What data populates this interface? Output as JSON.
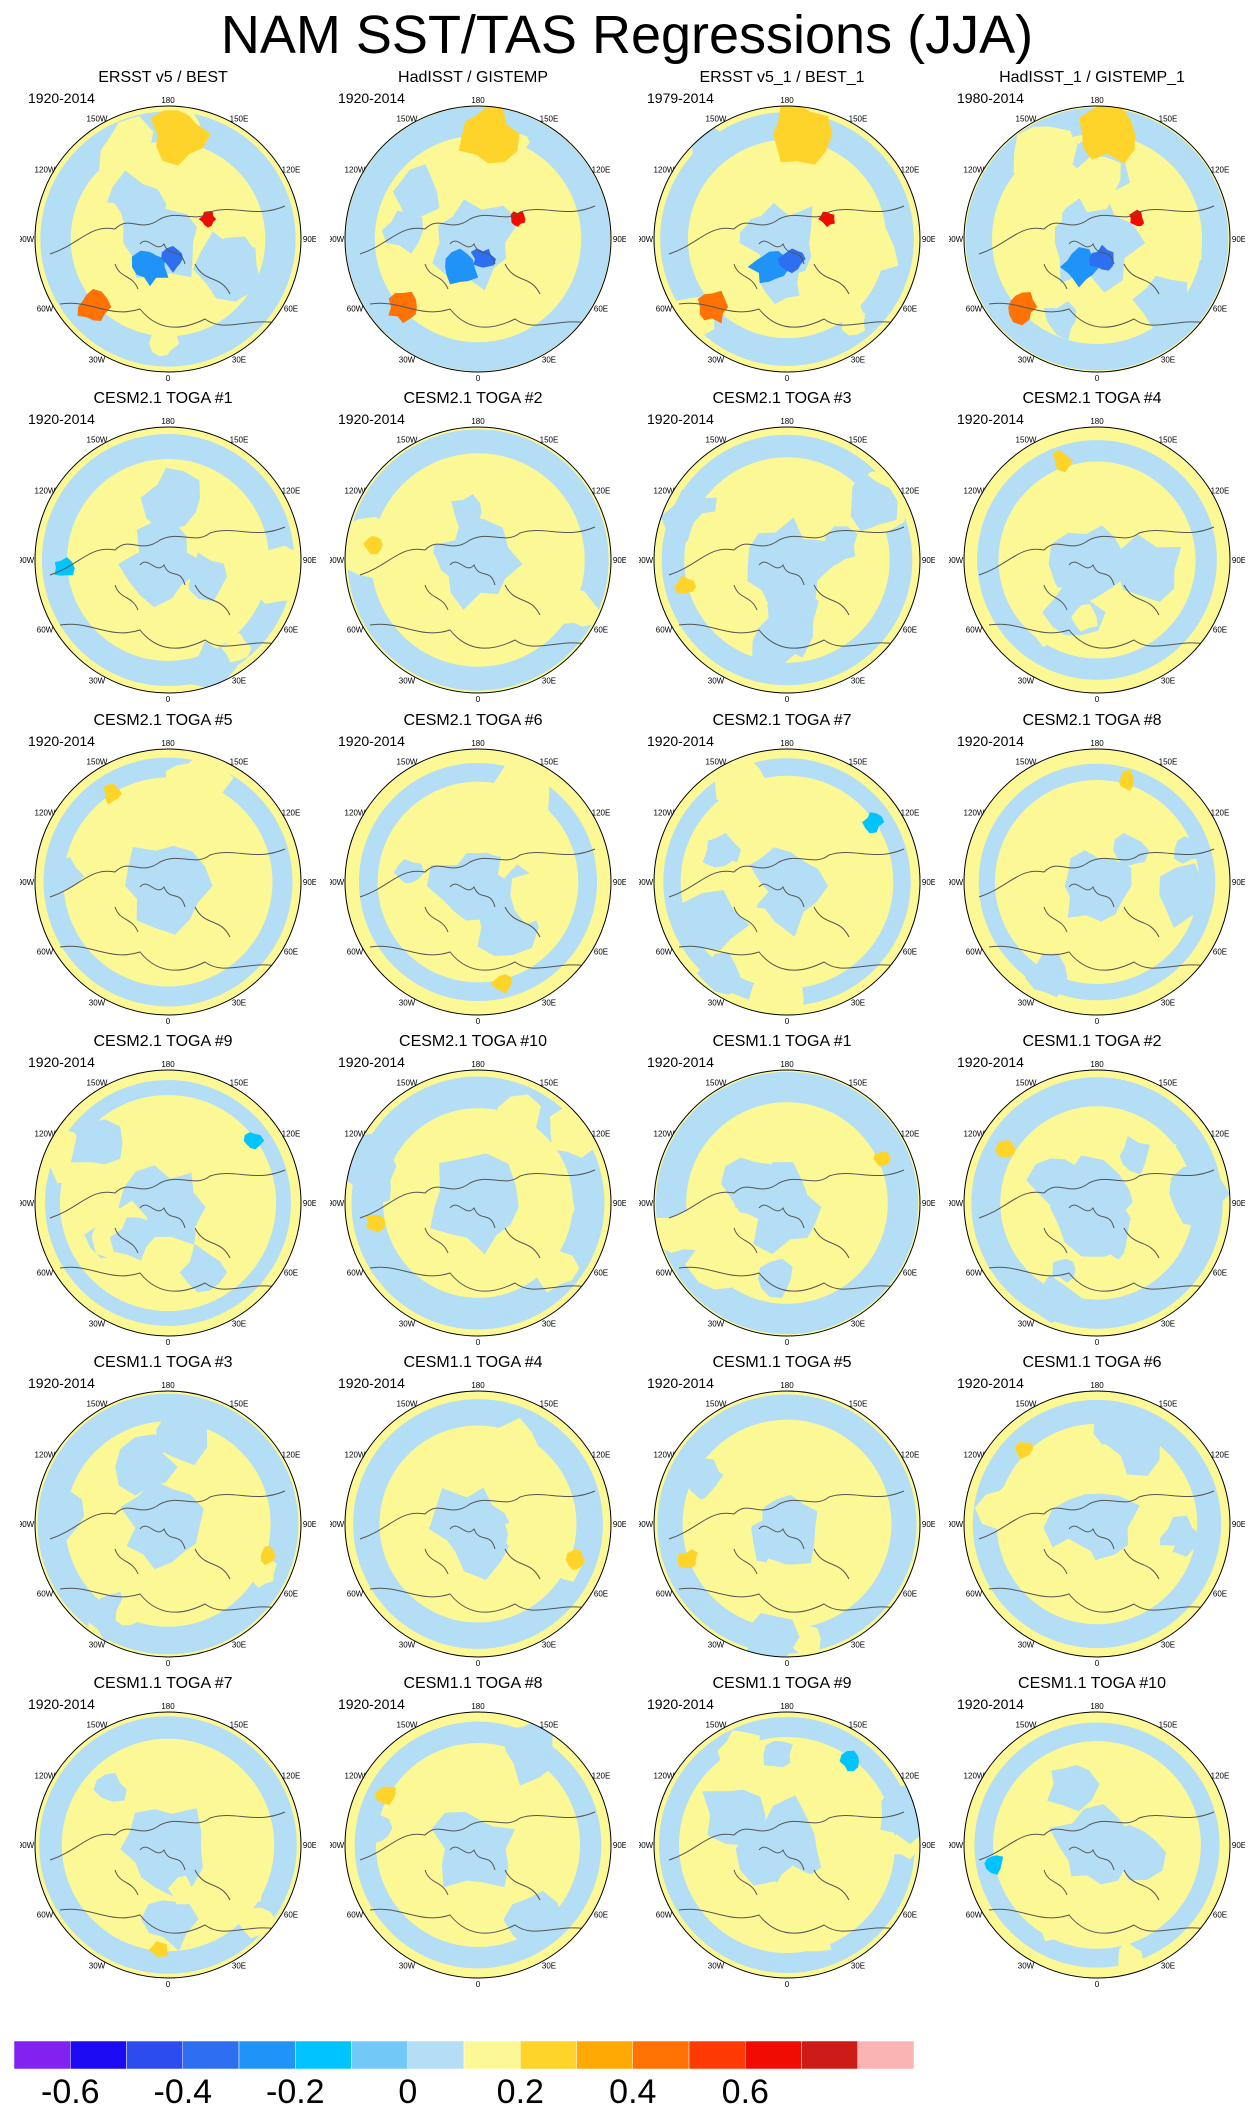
{
  "title": "NAM SST/TAS Regressions (JJA)",
  "panels": [
    {
      "title": "ERSST v5 / BEST",
      "period": "1920-2014"
    },
    {
      "title": "HadISST / GISTEMP",
      "period": "1920-2014"
    },
    {
      "title": "ERSST v5_1 / BEST_1",
      "period": "1979-2014"
    },
    {
      "title": "HadISST_1 / GISTEMP_1",
      "period": "1980-2014"
    },
    {
      "title": "CESM2.1 TOGA #1",
      "period": "1920-2014"
    },
    {
      "title": "CESM2.1 TOGA #2",
      "period": "1920-2014"
    },
    {
      "title": "CESM2.1 TOGA #3",
      "period": "1920-2014"
    },
    {
      "title": "CESM2.1 TOGA #4",
      "period": "1920-2014"
    },
    {
      "title": "CESM2.1 TOGA #5",
      "period": "1920-2014"
    },
    {
      "title": "CESM2.1 TOGA #6",
      "period": "1920-2014"
    },
    {
      "title": "CESM2.1 TOGA #7",
      "period": "1920-2014"
    },
    {
      "title": "CESM2.1 TOGA #8",
      "period": "1920-2014"
    },
    {
      "title": "CESM2.1 TOGA #9",
      "period": "1920-2014"
    },
    {
      "title": "CESM2.1 TOGA #10",
      "period": "1920-2014"
    },
    {
      "title": "CESM1.1 TOGA #1",
      "period": "1920-2014"
    },
    {
      "title": "CESM1.1 TOGA #2",
      "period": "1920-2014"
    },
    {
      "title": "CESM1.1 TOGA #3",
      "period": "1920-2014"
    },
    {
      "title": "CESM1.1 TOGA #4",
      "period": "1920-2014"
    },
    {
      "title": "CESM1.1 TOGA #5",
      "period": "1920-2014"
    },
    {
      "title": "CESM1.1 TOGA #6",
      "period": "1920-2014"
    },
    {
      "title": "CESM1.1 TOGA #7",
      "period": "1920-2014"
    },
    {
      "title": "CESM1.1 TOGA #8",
      "period": "1920-2014"
    },
    {
      "title": "CESM1.1 TOGA #9",
      "period": "1920-2014"
    },
    {
      "title": "CESM1.1 TOGA #10",
      "period": "1920-2014"
    }
  ],
  "longitude_labels": [
    "180",
    "150E",
    "120E",
    "90E",
    "60E",
    "30E",
    "0",
    "30W",
    "60W",
    "90W",
    "120W",
    "150W"
  ],
  "colorbar": {
    "colors": [
      "#8122f0",
      "#1c0bf2",
      "#2c4cf0",
      "#2d6ff0",
      "#1f93f7",
      "#00c4ff",
      "#72c9f7",
      "#b3def5",
      "#fdf896",
      "#ffd42a",
      "#ffa905",
      "#ff7203",
      "#ff3a05",
      "#f00c03",
      "#cd1c17",
      "#fbb4b4"
    ],
    "tick_labels": [
      "-0.6",
      "-0.4",
      "-0.2",
      "0",
      "0.2",
      "0.4",
      "0.6"
    ]
  },
  "map_colors": {
    "negative_weak": "#b3def5",
    "positive_weak": "#fdf896",
    "coast": "#555555"
  }
}
